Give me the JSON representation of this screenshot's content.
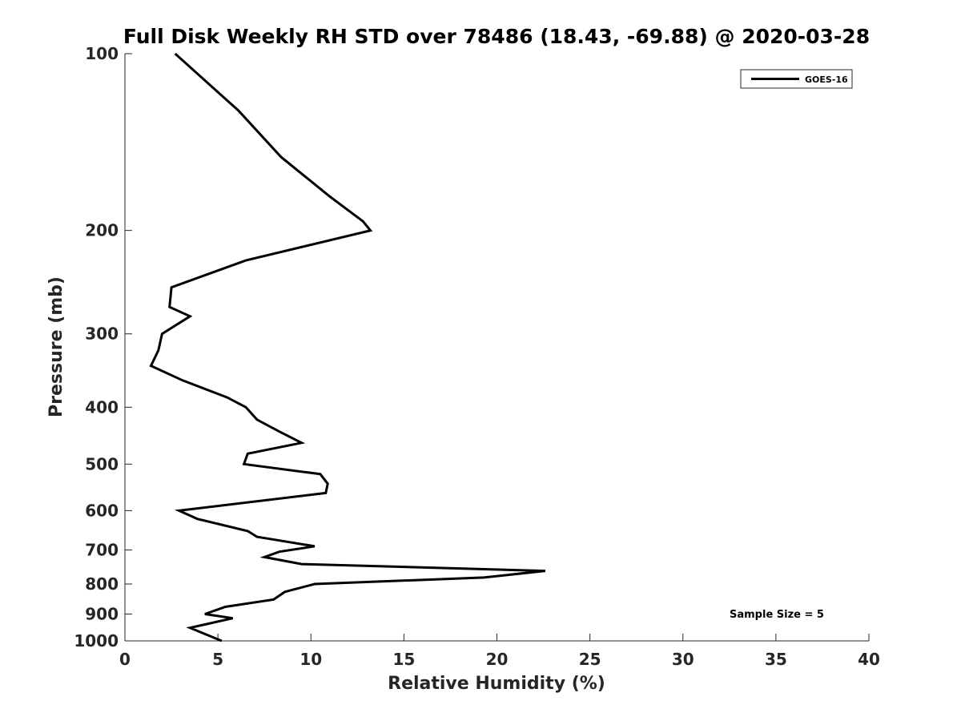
{
  "chart_data": {
    "type": "line",
    "title": "Full Disk Weekly RH STD over 78486 (18.43, -69.88) @ 2020-03-28",
    "xlabel": "Relative Humidity (%)",
    "ylabel": "Pressure (mb)",
    "xlim": [
      0,
      40
    ],
    "ylim": [
      100,
      1000
    ],
    "y_scale": "log",
    "y_reversed": true,
    "x_ticks": [
      0,
      5,
      10,
      15,
      20,
      25,
      30,
      35,
      40
    ],
    "x_tick_labels": [
      "0",
      "5",
      "10",
      "15",
      "20",
      "25",
      "30",
      "35",
      "40"
    ],
    "y_ticks": [
      100,
      200,
      300,
      400,
      500,
      600,
      700,
      800,
      900,
      1000
    ],
    "y_tick_labels": [
      "100",
      "200",
      "300",
      "400",
      "500",
      "600",
      "700",
      "800",
      "900",
      "1000"
    ],
    "grid": false,
    "legend": {
      "position": "top-right",
      "entries": [
        "GOES-16"
      ]
    },
    "annotation": "Sample Size = 5",
    "series": [
      {
        "name": "GOES-16",
        "color": "#000000",
        "points": [
          [
            2.7,
            100
          ],
          [
            6.1,
            125
          ],
          [
            8.4,
            150
          ],
          [
            11.0,
            175
          ],
          [
            12.8,
            193
          ],
          [
            13.2,
            200
          ],
          [
            6.5,
            225
          ],
          [
            2.5,
            250
          ],
          [
            2.4,
            270
          ],
          [
            3.5,
            280
          ],
          [
            2.0,
            300
          ],
          [
            1.8,
            320
          ],
          [
            1.4,
            340
          ],
          [
            3.1,
            360
          ],
          [
            5.5,
            385
          ],
          [
            6.5,
            400
          ],
          [
            7.1,
            420
          ],
          [
            8.3,
            440
          ],
          [
            9.5,
            460
          ],
          [
            6.6,
            480
          ],
          [
            6.4,
            500
          ],
          [
            10.5,
            520
          ],
          [
            10.9,
            540
          ],
          [
            10.8,
            560
          ],
          [
            2.9,
            600
          ],
          [
            3.9,
            620
          ],
          [
            6.6,
            650
          ],
          [
            7.1,
            665
          ],
          [
            10.2,
            690
          ],
          [
            8.3,
            705
          ],
          [
            7.5,
            720
          ],
          [
            9.5,
            740
          ],
          [
            22.6,
            760
          ],
          [
            19.3,
            780
          ],
          [
            10.2,
            800
          ],
          [
            8.6,
            825
          ],
          [
            8.0,
            850
          ],
          [
            5.4,
            875
          ],
          [
            4.3,
            900
          ],
          [
            5.8,
            915
          ],
          [
            3.5,
            950
          ],
          [
            5.2,
            1000
          ]
        ]
      }
    ]
  }
}
